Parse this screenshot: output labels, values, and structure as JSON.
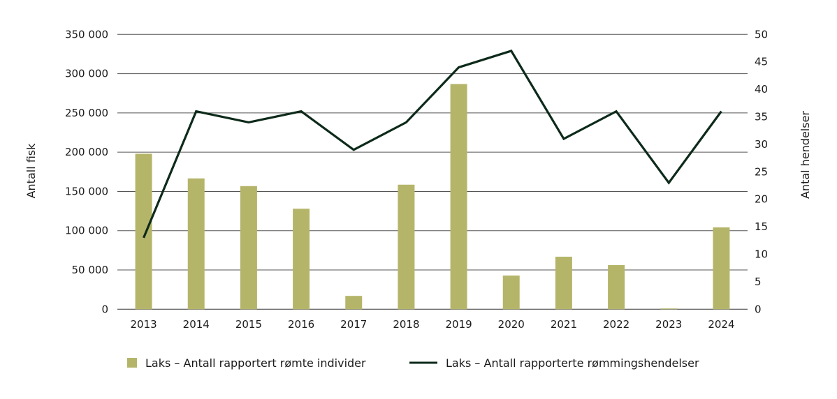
{
  "chart_data": {
    "type": "bar+line",
    "categories": [
      "2013",
      "2014",
      "2015",
      "2016",
      "2017",
      "2018",
      "2019",
      "2020",
      "2021",
      "2022",
      "2023",
      "2024"
    ],
    "series": [
      {
        "name": "Laks – Antall rapportert rømte individer",
        "type": "bar",
        "axis": "left",
        "color": "#b5b56a",
        "values": [
          198000,
          166600,
          156800,
          128000,
          17000,
          158600,
          286800,
          42900,
          66900,
          56200,
          1000,
          104200
        ]
      },
      {
        "name": "Laks – Antall rapporterte rømmingshendelser",
        "type": "line",
        "axis": "right",
        "color": "#0d2a1a",
        "values": [
          13,
          36,
          34,
          36,
          29,
          34,
          44,
          47,
          31,
          36,
          23,
          36
        ]
      }
    ],
    "ylabel": "Antall fisk",
    "y2label": "Antal hendelser",
    "ylim": [
      0,
      350000
    ],
    "y2lim": [
      0,
      50
    ],
    "yticks": [
      "0",
      "50 000",
      "100 000",
      "150 000",
      "200 000",
      "250 000",
      "300 000",
      "350 000"
    ],
    "y2ticks": [
      "0",
      "5",
      "10",
      "15",
      "20",
      "25",
      "30",
      "35",
      "40",
      "45",
      "50"
    ],
    "grid": true,
    "legend": "bottom"
  }
}
